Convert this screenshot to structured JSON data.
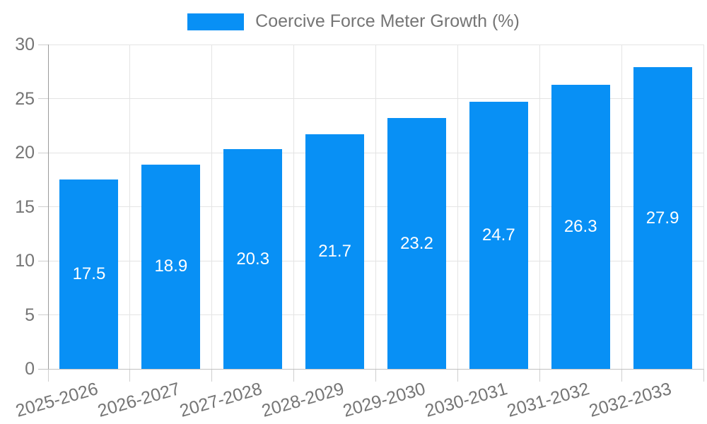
{
  "chart_data": {
    "type": "bar",
    "legend_label": "Coercive Force Meter Growth (%)",
    "legend_position": "top",
    "categories": [
      "2025-2026",
      "2026-2027",
      "2027-2028",
      "2028-2029",
      "2029-2030",
      "2030-2031",
      "2031-2032",
      "2032-2033"
    ],
    "values": [
      17.5,
      18.9,
      20.3,
      21.7,
      23.2,
      24.7,
      26.3,
      27.9
    ],
    "value_labels": [
      "17.5",
      "18.9",
      "20.3",
      "21.7",
      "23.2",
      "24.7",
      "26.3",
      "27.9"
    ],
    "y_ticks": [
      0,
      5,
      10,
      15,
      20,
      25,
      30
    ],
    "ylim": [
      0,
      30
    ],
    "xlabel": "",
    "ylabel": "",
    "grid": true,
    "colors": {
      "bar": "#0890F5",
      "bar_value_text": "#ffffff",
      "tick_text": "#757575",
      "legend_text": "#757575",
      "gridline": "#e4e4e4",
      "y_axis_line": "#9b9b9b",
      "x_axis_line": "#c2c2c2",
      "tick_mark": "#cfcfcf",
      "background": "#ffffff"
    }
  }
}
